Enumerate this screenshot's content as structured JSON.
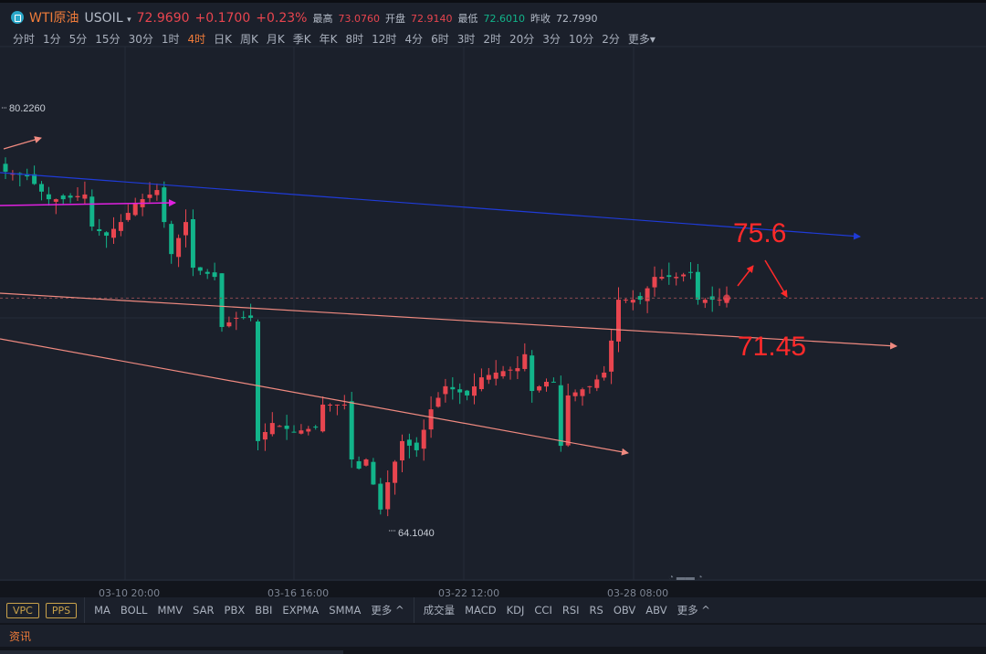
{
  "header": {
    "name": "WTI原油",
    "symbol": "USOIL",
    "price": "72.9690",
    "change": "+0.1700",
    "change_pct": "+0.23%",
    "high_label": "最高",
    "high": "73.0760",
    "open_label": "开盘",
    "open": "72.9140",
    "low_label": "最低",
    "low": "72.6010",
    "prev_label": "昨收",
    "prev": "72.7990"
  },
  "timeframes": [
    "分时",
    "1分",
    "5分",
    "15分",
    "30分",
    "1时",
    "4时",
    "日K",
    "周K",
    "月K",
    "季K",
    "年K",
    "8时",
    "12时",
    "4分",
    "6时",
    "3时",
    "2时",
    "20分",
    "3分",
    "10分",
    "2分",
    "更多▾"
  ],
  "active_timeframe": "4时",
  "chart": {
    "max_label": "80.2260",
    "min_label": "64.1040",
    "annotation_upper": "75.6",
    "annotation_lower": "71.45",
    "x_labels": [
      "03-10 20:00",
      "03-16 16:00",
      "03-22 12:00",
      "03-28 08:00"
    ]
  },
  "chart_data": {
    "type": "candlestick",
    "current_price": 72.969,
    "price_range": [
      64.104,
      80.226
    ],
    "close_path": [
      [
        0,
        77.79
      ],
      [
        3,
        77.61
      ],
      [
        6,
        76.74
      ],
      [
        8,
        76.74
      ],
      [
        11,
        76.92
      ],
      [
        12,
        75.7
      ],
      [
        14,
        75.35
      ],
      [
        16,
        75.87
      ],
      [
        18,
        76.57
      ],
      [
        21,
        77.09
      ],
      [
        23,
        74.65
      ],
      [
        25,
        75.87
      ],
      [
        26,
        74.13
      ],
      [
        29,
        73.78
      ],
      [
        30,
        71.87
      ],
      [
        32,
        72.22
      ],
      [
        34,
        72.22
      ],
      [
        35,
        67.52
      ],
      [
        37,
        68.21
      ],
      [
        40,
        67.87
      ],
      [
        43,
        68.04
      ],
      [
        44,
        68.91
      ],
      [
        47,
        68.91
      ],
      [
        48,
        66.82
      ],
      [
        49,
        66.47
      ],
      [
        50,
        66.82
      ],
      [
        52,
        64.91
      ],
      [
        53,
        65.95
      ],
      [
        55,
        67.52
      ],
      [
        57,
        67.17
      ],
      [
        59,
        68.73
      ],
      [
        61,
        69.61
      ],
      [
        64,
        69.26
      ],
      [
        66,
        69.95
      ],
      [
        68,
        70.13
      ],
      [
        71,
        70.3
      ],
      [
        72,
        70.83
      ],
      [
        73,
        69.43
      ],
      [
        75,
        69.78
      ],
      [
        76,
        69.78
      ],
      [
        77,
        67.34
      ],
      [
        78,
        69.26
      ],
      [
        81,
        69.61
      ],
      [
        83,
        70.13
      ],
      [
        84,
        71.35
      ],
      [
        85,
        72.91
      ],
      [
        88,
        72.91
      ],
      [
        90,
        73.78
      ],
      [
        93,
        73.78
      ],
      [
        95,
        73.96
      ],
      [
        96,
        72.91
      ],
      [
        99,
        72.91
      ],
      [
        100,
        72.97
      ]
    ]
  },
  "indicators": {
    "buttons": [
      "VPC",
      "PPS"
    ],
    "main": [
      "MA",
      "BOLL",
      "MMV",
      "SAR",
      "PBX",
      "BBI",
      "EXPMA",
      "SMMA",
      "更多 ^"
    ],
    "sub": [
      "成交量",
      "MACD",
      "KDJ",
      "CCI",
      "RSI",
      "RS",
      "OBV",
      "ABV",
      "更多 ^"
    ]
  },
  "news_tab": "资讯",
  "colors": {
    "up": "#e8454f",
    "down": "#12b48a",
    "bg": "#1b202b"
  }
}
